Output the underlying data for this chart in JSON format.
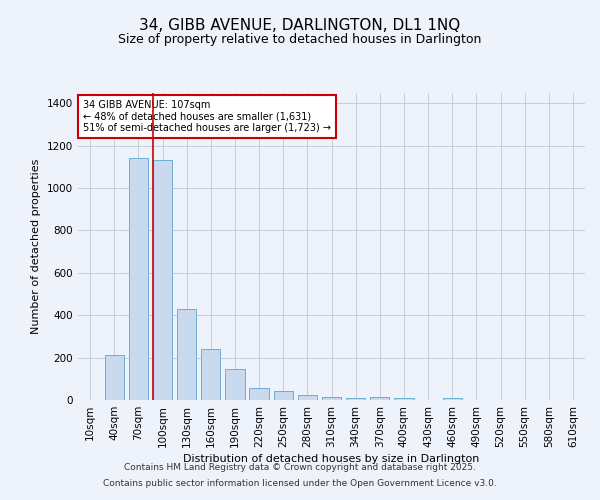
{
  "title1": "34, GIBB AVENUE, DARLINGTON, DL1 1NQ",
  "title2": "Size of property relative to detached houses in Darlington",
  "xlabel": "Distribution of detached houses by size in Darlington",
  "ylabel": "Number of detached properties",
  "categories": [
    "10sqm",
    "40sqm",
    "70sqm",
    "100sqm",
    "130sqm",
    "160sqm",
    "190sqm",
    "220sqm",
    "250sqm",
    "280sqm",
    "310sqm",
    "340sqm",
    "370sqm",
    "400sqm",
    "430sqm",
    "460sqm",
    "490sqm",
    "520sqm",
    "550sqm",
    "580sqm",
    "610sqm"
  ],
  "values": [
    0,
    210,
    1140,
    1130,
    430,
    240,
    145,
    58,
    42,
    22,
    15,
    10,
    12,
    8,
    0,
    8,
    0,
    0,
    0,
    0,
    0
  ],
  "bar_color": "#c9d9ee",
  "bar_edge_color": "#6baed6",
  "red_line_index": 3,
  "annotation_title": "34 GIBB AVENUE: 107sqm",
  "annotation_line1": "← 48% of detached houses are smaller (1,631)",
  "annotation_line2": "51% of semi-detached houses are larger (1,723) →",
  "annotation_box_facecolor": "#ffffff",
  "annotation_box_edgecolor": "#cc0000",
  "footer1": "Contains HM Land Registry data © Crown copyright and database right 2025.",
  "footer2": "Contains public sector information licensed under the Open Government Licence v3.0.",
  "bg_color": "#eef2fb",
  "grid_color": "#c0c8d8",
  "ylim": [
    0,
    1450
  ],
  "yticks": [
    0,
    200,
    400,
    600,
    800,
    1000,
    1200,
    1400
  ],
  "title1_fontsize": 11,
  "title2_fontsize": 9,
  "axis_label_fontsize": 8,
  "tick_fontsize": 7.5,
  "annotation_fontsize": 7,
  "footer_fontsize": 6.5
}
